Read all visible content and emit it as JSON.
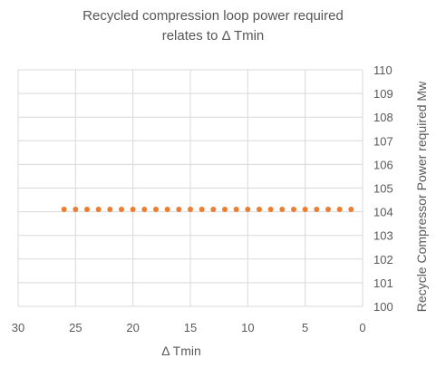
{
  "chart_data": {
    "type": "scatter",
    "title_lines": [
      "Recycled compression loop power required",
      "relates to Δ Tmin"
    ],
    "xlabel": "Δ Tmin",
    "ylabel": "Recycle Compressor Power required  Mw",
    "x_reversed": true,
    "xlim": [
      0,
      30
    ],
    "ylim": [
      100,
      110
    ],
    "x_ticks": [
      30,
      25,
      20,
      15,
      10,
      5,
      0
    ],
    "y_ticks": [
      100,
      101,
      102,
      103,
      104,
      105,
      106,
      107,
      108,
      109,
      110
    ],
    "y_axis_side": "right",
    "grid": true,
    "legend": "none",
    "marker_color": "#ED7D31",
    "x": [
      26,
      25,
      24,
      23,
      22,
      21,
      20,
      19,
      18,
      17,
      16,
      15,
      14,
      13,
      12,
      11,
      10,
      9,
      8,
      7,
      6,
      5,
      4,
      3,
      2,
      1
    ],
    "y": [
      104.1,
      104.1,
      104.1,
      104.1,
      104.1,
      104.1,
      104.1,
      104.1,
      104.1,
      104.1,
      104.1,
      104.1,
      104.1,
      104.1,
      104.1,
      104.1,
      104.1,
      104.1,
      104.1,
      104.1,
      104.1,
      104.1,
      104.1,
      104.1,
      104.1,
      104.1
    ]
  }
}
